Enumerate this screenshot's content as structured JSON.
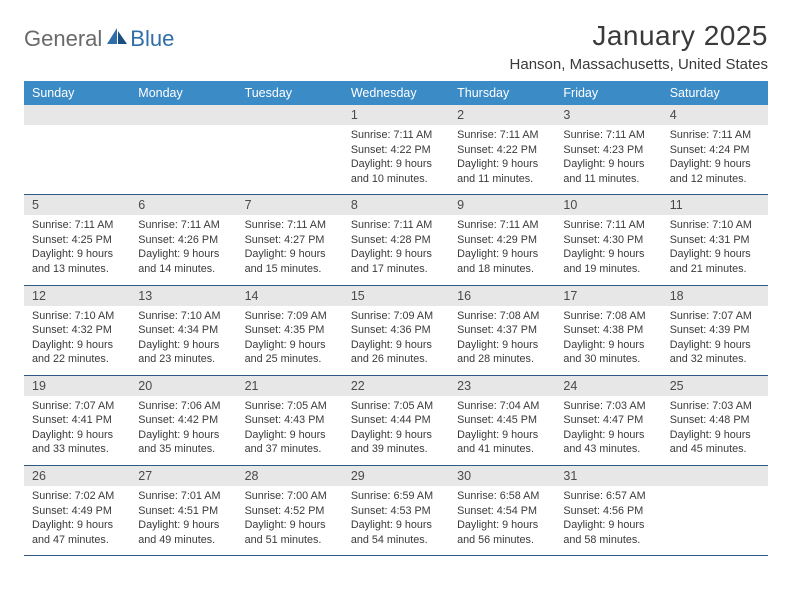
{
  "brand": {
    "part1": "General",
    "part2": "Blue"
  },
  "title": "January 2025",
  "location": "Hanson, Massachusetts, United States",
  "colors": {
    "header_bg": "#3b8bc7",
    "header_text": "#ffffff",
    "daynum_bg": "#e7e7e7",
    "row_divider": "#2f5a88",
    "body_text": "#3a3a3a",
    "logo_gray": "#6a6a6a",
    "logo_blue": "#2f6ea8"
  },
  "dow": [
    "Sunday",
    "Monday",
    "Tuesday",
    "Wednesday",
    "Thursday",
    "Friday",
    "Saturday"
  ],
  "weeks": [
    [
      {
        "n": "",
        "d": ""
      },
      {
        "n": "",
        "d": ""
      },
      {
        "n": "",
        "d": ""
      },
      {
        "n": "1",
        "d": "Sunrise: 7:11 AM\nSunset: 4:22 PM\nDaylight: 9 hours\nand 10 minutes."
      },
      {
        "n": "2",
        "d": "Sunrise: 7:11 AM\nSunset: 4:22 PM\nDaylight: 9 hours\nand 11 minutes."
      },
      {
        "n": "3",
        "d": "Sunrise: 7:11 AM\nSunset: 4:23 PM\nDaylight: 9 hours\nand 11 minutes."
      },
      {
        "n": "4",
        "d": "Sunrise: 7:11 AM\nSunset: 4:24 PM\nDaylight: 9 hours\nand 12 minutes."
      }
    ],
    [
      {
        "n": "5",
        "d": "Sunrise: 7:11 AM\nSunset: 4:25 PM\nDaylight: 9 hours\nand 13 minutes."
      },
      {
        "n": "6",
        "d": "Sunrise: 7:11 AM\nSunset: 4:26 PM\nDaylight: 9 hours\nand 14 minutes."
      },
      {
        "n": "7",
        "d": "Sunrise: 7:11 AM\nSunset: 4:27 PM\nDaylight: 9 hours\nand 15 minutes."
      },
      {
        "n": "8",
        "d": "Sunrise: 7:11 AM\nSunset: 4:28 PM\nDaylight: 9 hours\nand 17 minutes."
      },
      {
        "n": "9",
        "d": "Sunrise: 7:11 AM\nSunset: 4:29 PM\nDaylight: 9 hours\nand 18 minutes."
      },
      {
        "n": "10",
        "d": "Sunrise: 7:11 AM\nSunset: 4:30 PM\nDaylight: 9 hours\nand 19 minutes."
      },
      {
        "n": "11",
        "d": "Sunrise: 7:10 AM\nSunset: 4:31 PM\nDaylight: 9 hours\nand 21 minutes."
      }
    ],
    [
      {
        "n": "12",
        "d": "Sunrise: 7:10 AM\nSunset: 4:32 PM\nDaylight: 9 hours\nand 22 minutes."
      },
      {
        "n": "13",
        "d": "Sunrise: 7:10 AM\nSunset: 4:34 PM\nDaylight: 9 hours\nand 23 minutes."
      },
      {
        "n": "14",
        "d": "Sunrise: 7:09 AM\nSunset: 4:35 PM\nDaylight: 9 hours\nand 25 minutes."
      },
      {
        "n": "15",
        "d": "Sunrise: 7:09 AM\nSunset: 4:36 PM\nDaylight: 9 hours\nand 26 minutes."
      },
      {
        "n": "16",
        "d": "Sunrise: 7:08 AM\nSunset: 4:37 PM\nDaylight: 9 hours\nand 28 minutes."
      },
      {
        "n": "17",
        "d": "Sunrise: 7:08 AM\nSunset: 4:38 PM\nDaylight: 9 hours\nand 30 minutes."
      },
      {
        "n": "18",
        "d": "Sunrise: 7:07 AM\nSunset: 4:39 PM\nDaylight: 9 hours\nand 32 minutes."
      }
    ],
    [
      {
        "n": "19",
        "d": "Sunrise: 7:07 AM\nSunset: 4:41 PM\nDaylight: 9 hours\nand 33 minutes."
      },
      {
        "n": "20",
        "d": "Sunrise: 7:06 AM\nSunset: 4:42 PM\nDaylight: 9 hours\nand 35 minutes."
      },
      {
        "n": "21",
        "d": "Sunrise: 7:05 AM\nSunset: 4:43 PM\nDaylight: 9 hours\nand 37 minutes."
      },
      {
        "n": "22",
        "d": "Sunrise: 7:05 AM\nSunset: 4:44 PM\nDaylight: 9 hours\nand 39 minutes."
      },
      {
        "n": "23",
        "d": "Sunrise: 7:04 AM\nSunset: 4:45 PM\nDaylight: 9 hours\nand 41 minutes."
      },
      {
        "n": "24",
        "d": "Sunrise: 7:03 AM\nSunset: 4:47 PM\nDaylight: 9 hours\nand 43 minutes."
      },
      {
        "n": "25",
        "d": "Sunrise: 7:03 AM\nSunset: 4:48 PM\nDaylight: 9 hours\nand 45 minutes."
      }
    ],
    [
      {
        "n": "26",
        "d": "Sunrise: 7:02 AM\nSunset: 4:49 PM\nDaylight: 9 hours\nand 47 minutes."
      },
      {
        "n": "27",
        "d": "Sunrise: 7:01 AM\nSunset: 4:51 PM\nDaylight: 9 hours\nand 49 minutes."
      },
      {
        "n": "28",
        "d": "Sunrise: 7:00 AM\nSunset: 4:52 PM\nDaylight: 9 hours\nand 51 minutes."
      },
      {
        "n": "29",
        "d": "Sunrise: 6:59 AM\nSunset: 4:53 PM\nDaylight: 9 hours\nand 54 minutes."
      },
      {
        "n": "30",
        "d": "Sunrise: 6:58 AM\nSunset: 4:54 PM\nDaylight: 9 hours\nand 56 minutes."
      },
      {
        "n": "31",
        "d": "Sunrise: 6:57 AM\nSunset: 4:56 PM\nDaylight: 9 hours\nand 58 minutes."
      },
      {
        "n": "",
        "d": ""
      }
    ]
  ]
}
